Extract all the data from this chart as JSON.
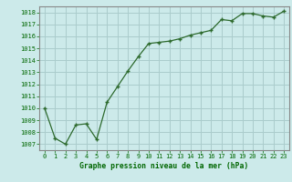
{
  "x": [
    0,
    1,
    2,
    3,
    4,
    5,
    6,
    7,
    8,
    9,
    10,
    11,
    12,
    13,
    14,
    15,
    16,
    17,
    18,
    19,
    20,
    21,
    22,
    23
  ],
  "y": [
    1010.0,
    1007.5,
    1007.0,
    1008.6,
    1008.7,
    1007.4,
    1010.5,
    1011.8,
    1013.1,
    1014.3,
    1015.4,
    1015.5,
    1015.6,
    1015.8,
    1016.1,
    1016.3,
    1016.5,
    1017.4,
    1017.3,
    1017.9,
    1017.9,
    1017.7,
    1017.6,
    1018.1
  ],
  "ylim_min": 1006.5,
  "ylim_max": 1018.5,
  "yticks": [
    1007,
    1008,
    1009,
    1010,
    1011,
    1012,
    1013,
    1014,
    1015,
    1016,
    1017,
    1018
  ],
  "xticks": [
    0,
    1,
    2,
    3,
    4,
    5,
    6,
    7,
    8,
    9,
    10,
    11,
    12,
    13,
    14,
    15,
    16,
    17,
    18,
    19,
    20,
    21,
    22,
    23
  ],
  "line_color": "#2d6a2d",
  "marker_color": "#2d6a2d",
  "bg_color": "#cceaea",
  "grid_color": "#aacccc",
  "xlabel": "Graphe pression niveau de la mer (hPa)",
  "xlabel_color": "#006600",
  "tick_color": "#006600",
  "axis_color": "#888888",
  "tick_fontsize": 5.0,
  "xlabel_fontsize": 5.8
}
